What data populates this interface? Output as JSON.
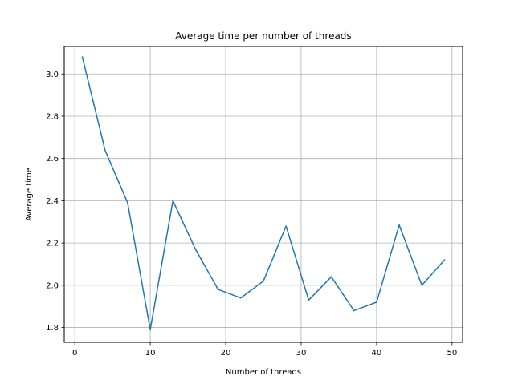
{
  "chart_data": {
    "type": "line",
    "title": "Average time per number of threads",
    "xlabel": "Number of threads",
    "ylabel": "Average time",
    "xlim": [
      -1.4,
      51.4
    ],
    "ylim": [
      1.73,
      3.13
    ],
    "xticks": [
      0,
      10,
      20,
      30,
      40,
      50
    ],
    "yticks": [
      1.8,
      2.0,
      2.2,
      2.4,
      2.6,
      2.8,
      3.0
    ],
    "xtick_labels": [
      "0",
      "10",
      "20",
      "30",
      "40",
      "50"
    ],
    "ytick_labels": [
      "1.8",
      "2.0",
      "2.2",
      "2.4",
      "2.6",
      "2.8",
      "3.0"
    ],
    "grid": true,
    "series": [
      {
        "name": "average time",
        "color": "#1f77b4",
        "x": [
          1,
          4,
          7,
          10,
          13,
          16,
          19,
          22,
          25,
          28,
          31,
          34,
          37,
          40,
          43,
          46,
          49
        ],
        "values": [
          3.08,
          2.64,
          2.39,
          1.79,
          2.4,
          2.17,
          1.98,
          1.94,
          2.02,
          2.28,
          1.93,
          2.04,
          1.88,
          1.92,
          2.285,
          2.0,
          2.12
        ]
      }
    ]
  }
}
